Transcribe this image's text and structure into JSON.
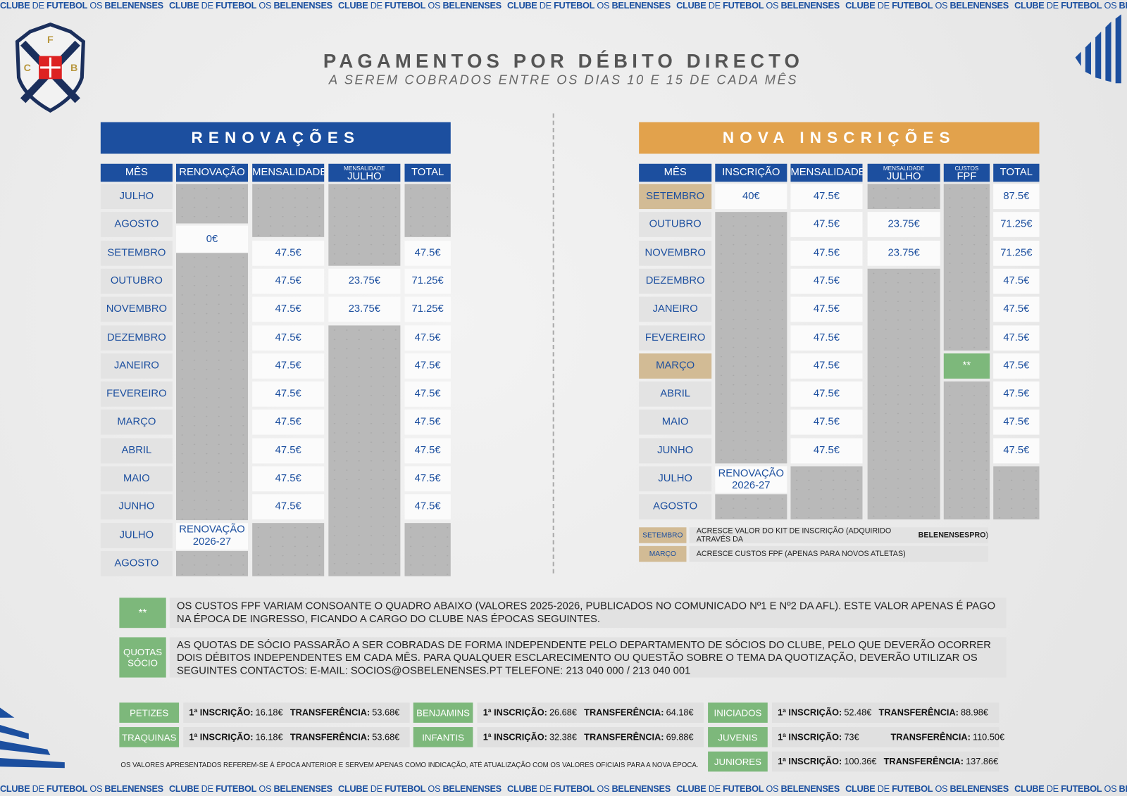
{
  "strip_text": {
    "a": "CLUBE",
    "b": "DE",
    "c": "FUTEBOL",
    "d": "OS",
    "e": "BELENENSES"
  },
  "logo": {
    "letters": [
      "F",
      "C",
      "B"
    ]
  },
  "header": {
    "title": "PAGAMENTOS POR DÉBITO DIRECTO",
    "subtitle": "A SEREM COBRADOS ENTRE OS DIAS 10 E 15 DE CADA MÊS"
  },
  "colors": {
    "blue": "#1c4f9f",
    "orange": "#e2a24c",
    "green": "#7db87b",
    "tan": "#d2bb95"
  },
  "renovacoes": {
    "title": "RENOVAÇÕES",
    "headers": [
      "MÊS",
      "RENOVAÇÃO",
      "MENSALIDADE",
      {
        "small": "MENSALIDADE",
        "big": "JULHO"
      },
      "TOTAL"
    ],
    "months": [
      "JULHO",
      "AGOSTO",
      "SETEMBRO",
      "OUTUBRO",
      "NOVEMBRO",
      "DEZEMBRO",
      "JANEIRO",
      "FEVEREIRO",
      "MARÇO",
      "ABRIL",
      "MAIO",
      "JUNHO",
      "JULHO",
      "AGOSTO"
    ],
    "renovacao": [
      null,
      "0€",
      null,
      null,
      null,
      null,
      null,
      null,
      null,
      null,
      null,
      null,
      "RENOVAÇÃO 2026-27",
      null
    ],
    "mensalidade": [
      null,
      null,
      "47.5€",
      "47.5€",
      "47.5€",
      "47.5€",
      "47.5€",
      "47.5€",
      "47.5€",
      "47.5€",
      "47.5€",
      "47.5€",
      null,
      null
    ],
    "julho": [
      null,
      null,
      null,
      "23.75€",
      "23.75€",
      null,
      null,
      null,
      null,
      null,
      null,
      null,
      null,
      null
    ],
    "total": [
      null,
      null,
      "47.5€",
      "71.25€",
      "71.25€",
      "47.5€",
      "47.5€",
      "47.5€",
      "47.5€",
      "47.5€",
      "47.5€",
      "47.5€",
      null,
      null
    ]
  },
  "nova": {
    "title": "NOVA INSCRIÇÕES",
    "headers": [
      "MÊS",
      "INSCRIÇÃO",
      "MENSALIDADE",
      {
        "small": "MENSALIDADE",
        "big": "JULHO"
      },
      {
        "small": "CUSTOS",
        "big": "FPF"
      },
      "TOTAL"
    ],
    "months": [
      "SETEMBRO",
      "OUTUBRO",
      "NOVEMBRO",
      "DEZEMBRO",
      "JANEIRO",
      "FEVEREIRO",
      "MARÇO",
      "ABRIL",
      "MAIO",
      "JUNHO",
      "JULHO",
      "AGOSTO"
    ],
    "highlight_months": [
      0,
      6
    ],
    "inscricao": [
      "40€",
      null,
      null,
      null,
      null,
      null,
      null,
      null,
      null,
      null,
      "RENOVAÇÃO 2026-27",
      null
    ],
    "mensalidade": [
      "47.5€",
      "47.5€",
      "47.5€",
      "47.5€",
      "47.5€",
      "47.5€",
      "47.5€",
      "47.5€",
      "47.5€",
      "47.5€",
      null,
      null
    ],
    "julho": [
      null,
      "23.75€",
      "23.75€",
      null,
      null,
      null,
      null,
      null,
      null,
      null,
      null,
      null
    ],
    "fpf": [
      null,
      null,
      null,
      null,
      null,
      null,
      "**",
      null,
      null,
      null,
      null,
      null
    ],
    "total": [
      "87.5€",
      "71.25€",
      "71.25€",
      "47.5€",
      "47.5€",
      "47.5€",
      "47.5€",
      "47.5€",
      "47.5€",
      "47.5€",
      null,
      null
    ],
    "legend": [
      {
        "label": "SETEMBRO",
        "text": "ACRESCE VALOR DO KIT DE INSCRIÇÃO (ADQUIRIDO ATRAVÉS DA ",
        "bold": "BELENENSESPRO",
        "end": ")"
      },
      {
        "label": "MARÇO",
        "text": "ACRESCE CUSTOS FPF (APENAS PARA NOVOS ATLETAS)",
        "bold": "",
        "end": ""
      }
    ]
  },
  "notes": [
    {
      "label": "**",
      "text": "OS CUSTOS FPF VARIAM CONSOANTE O QUADRO ABAIXO (VALORES 2025-2026, PUBLICADOS NO COMUNICADO Nº1 E Nº2 DA AFL). ESTE VALOR APENAS É PAGO NA ÉPOCA DE INGRESSO, FICANDO A CARGO DO CLUBE NAS ÉPOCAS SEGUINTES."
    },
    {
      "label": "QUOTAS SÓCIO",
      "text": "AS QUOTAS DE SÓCIO PASSARÃO A SER COBRADAS DE FORMA INDEPENDENTE PELO DEPARTAMENTO DE SÓCIOS DO CLUBE, PELO QUE DEVERÃO OCORRER DOIS DÉBITOS INDEPENDENTES EM CADA MÊS. PARA QUALQUER ESCLARECIMENTO OU QUESTÃO SOBRE O TEMA DA QUOTIZAÇÃO, DEVERÃO UTILIZAR OS SEGUINTES CONTACTOS: E-MAIL: SOCIOS@OSBELENENSES.PT TELEFONE: 213 040 000 / 213 040 001"
    }
  ],
  "fees": {
    "insc_label": "1ª INSCRIÇÃO:",
    "transf_label": "TRANSFERÊNCIA:",
    "items": [
      {
        "escalao": "PETIZES",
        "insc": "16.18€",
        "transf": "53.68€"
      },
      {
        "escalao": "BENJAMINS",
        "insc": "26.68€",
        "transf": "64.18€"
      },
      {
        "escalao": "INICIADOS",
        "insc": "52.48€",
        "transf": "88.98€"
      },
      {
        "escalao": "TRAQUINAS",
        "insc": "16.18€",
        "transf": "53.68€"
      },
      {
        "escalao": "INFANTIS",
        "insc": "32.38€",
        "transf": "69.88€"
      },
      {
        "escalao": "JUVENIS",
        "insc": "73€",
        "transf": "110.50€"
      },
      {
        "escalao": "JUNIORES",
        "insc": "100.36€",
        "transf": "137.86€"
      }
    ],
    "disclaimer": "OS VALORES APRESENTADOS REFEREM-SE À ÉPOCA ANTERIOR E SERVEM APENAS COMO INDICAÇÃO, ATÉ ATUALIZAÇÃO COM OS VALORES OFICIAIS PARA A NOVA ÉPOCA."
  }
}
